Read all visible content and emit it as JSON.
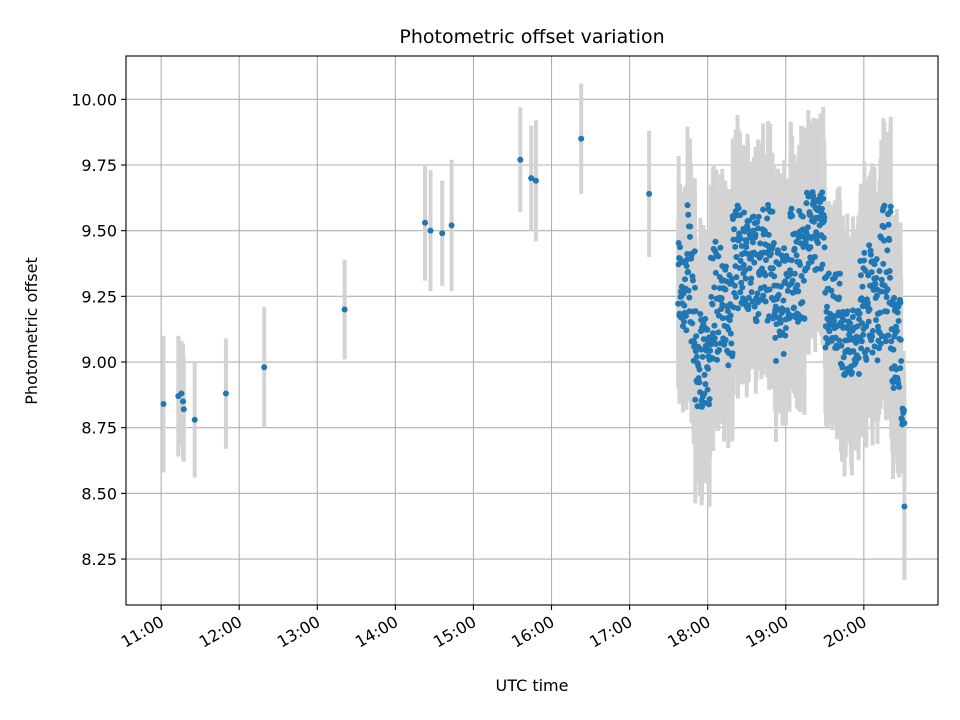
{
  "chart_data": {
    "type": "scatter",
    "title": "Photometric offset variation",
    "xlabel": "UTC time",
    "ylabel": "Photometric offset",
    "x_unit": "hours UTC",
    "xlim": [
      10.55,
      20.95
    ],
    "ylim": [
      8.075,
      10.165
    ],
    "x_ticks": [
      {
        "value": 11,
        "label": "11:00"
      },
      {
        "value": 12,
        "label": "12:00"
      },
      {
        "value": 13,
        "label": "13:00"
      },
      {
        "value": 14,
        "label": "14:00"
      },
      {
        "value": 15,
        "label": "15:00"
      },
      {
        "value": 16,
        "label": "16:00"
      },
      {
        "value": 17,
        "label": "17:00"
      },
      {
        "value": 18,
        "label": "18:00"
      },
      {
        "value": 19,
        "label": "19:00"
      },
      {
        "value": 20,
        "label": "20:00"
      }
    ],
    "y_ticks": [
      {
        "value": 8.25,
        "label": "8.25"
      },
      {
        "value": 8.5,
        "label": "8.50"
      },
      {
        "value": 8.75,
        "label": "8.75"
      },
      {
        "value": 9.0,
        "label": "9.00"
      },
      {
        "value": 9.25,
        "label": "9.25"
      },
      {
        "value": 9.5,
        "label": "9.50"
      },
      {
        "value": 9.75,
        "label": "9.75"
      },
      {
        "value": 10.0,
        "label": "10.00"
      }
    ],
    "grid": true,
    "point_color": "#1f77b4",
    "errorbar_color": "#d3d3d3",
    "points": [
      {
        "x": 11.03,
        "y": 8.84,
        "err": 0.26
      },
      {
        "x": 11.22,
        "y": 8.87,
        "err": 0.23
      },
      {
        "x": 11.26,
        "y": 8.88,
        "err": 0.2
      },
      {
        "x": 11.28,
        "y": 8.85,
        "err": 0.22
      },
      {
        "x": 11.29,
        "y": 8.82,
        "err": 0.2
      },
      {
        "x": 11.43,
        "y": 8.78,
        "err": 0.22
      },
      {
        "x": 11.83,
        "y": 8.88,
        "err": 0.21
      },
      {
        "x": 12.32,
        "y": 8.98,
        "err": 0.23
      },
      {
        "x": 13.35,
        "y": 9.2,
        "err": 0.19
      },
      {
        "x": 14.38,
        "y": 9.53,
        "err": 0.22
      },
      {
        "x": 14.45,
        "y": 9.5,
        "err": 0.23
      },
      {
        "x": 14.6,
        "y": 9.49,
        "err": 0.2
      },
      {
        "x": 14.72,
        "y": 9.52,
        "err": 0.25
      },
      {
        "x": 15.6,
        "y": 9.77,
        "err": 0.2
      },
      {
        "x": 15.74,
        "y": 9.7,
        "err": 0.2
      },
      {
        "x": 15.8,
        "y": 9.69,
        "err": 0.23
      },
      {
        "x": 16.38,
        "y": 9.85,
        "err": 0.21
      },
      {
        "x": 17.25,
        "y": 9.64,
        "err": 0.24
      }
    ],
    "dense_segments": [
      {
        "x0": 17.62,
        "x1": 17.72,
        "ymin": 9.1,
        "ymax": 9.5,
        "err": 0.3
      },
      {
        "x0": 17.72,
        "x1": 17.84,
        "ymin": 9.0,
        "ymax": 9.6,
        "err": 0.3
      },
      {
        "x0": 17.84,
        "x1": 18.04,
        "ymin": 8.82,
        "ymax": 9.2,
        "err": 0.33
      },
      {
        "x0": 18.04,
        "x1": 18.18,
        "ymin": 9.0,
        "ymax": 9.5,
        "err": 0.3
      },
      {
        "x0": 18.18,
        "x1": 18.32,
        "ymin": 8.98,
        "ymax": 9.38,
        "err": 0.3
      },
      {
        "x0": 18.32,
        "x1": 18.58,
        "ymin": 9.2,
        "ymax": 9.6,
        "err": 0.28
      },
      {
        "x0": 18.58,
        "x1": 18.85,
        "ymin": 9.15,
        "ymax": 9.6,
        "err": 0.28
      },
      {
        "x0": 18.85,
        "x1": 19.05,
        "ymin": 9.0,
        "ymax": 9.45,
        "err": 0.3
      },
      {
        "x0": 19.05,
        "x1": 19.25,
        "ymin": 9.15,
        "ymax": 9.6,
        "err": 0.3
      },
      {
        "x0": 19.25,
        "x1": 19.5,
        "ymin": 9.35,
        "ymax": 9.65,
        "err": 0.28
      },
      {
        "x0": 19.5,
        "x1": 19.7,
        "ymin": 9.05,
        "ymax": 9.35,
        "err": 0.3
      },
      {
        "x0": 19.7,
        "x1": 19.95,
        "ymin": 8.95,
        "ymax": 9.2,
        "err": 0.32
      },
      {
        "x0": 19.95,
        "x1": 20.2,
        "ymin": 9.0,
        "ymax": 9.45,
        "err": 0.3
      },
      {
        "x0": 20.2,
        "x1": 20.35,
        "ymin": 9.05,
        "ymax": 9.6,
        "err": 0.3
      },
      {
        "x0": 20.35,
        "x1": 20.48,
        "ymin": 8.9,
        "ymax": 9.25,
        "err": 0.3
      },
      {
        "x0": 20.48,
        "x1": 20.52,
        "ymin": 8.76,
        "ymax": 8.83,
        "err": 0.2
      }
    ],
    "end_point": {
      "x": 20.52,
      "y": 8.45,
      "err": 0.28
    }
  }
}
